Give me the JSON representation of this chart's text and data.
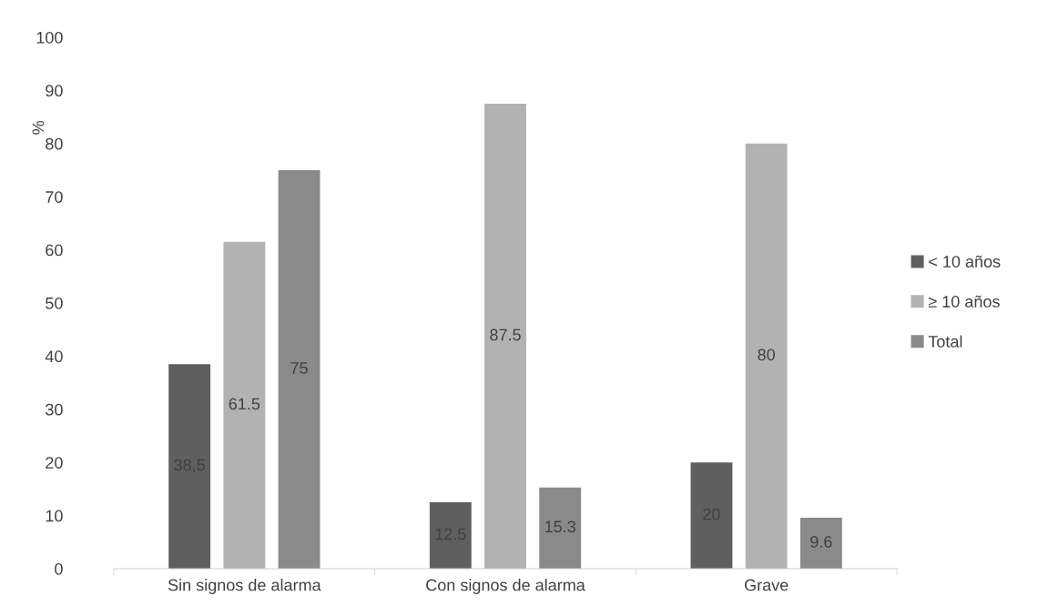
{
  "chart_data": {
    "type": "bar",
    "ylabel": "%",
    "categories": [
      "Sin signos de alarma",
      "Con signos de alarma",
      "Grave"
    ],
    "series": [
      {
        "name": "< 10 años",
        "color": "#5f5f5f",
        "values": [
          38.5,
          12.5,
          20
        ],
        "value_labels": [
          "38,5",
          "12.5",
          "20"
        ]
      },
      {
        "name": "≥ 10 años",
        "color": "#b2b2b2",
        "values": [
          61.5,
          87.5,
          80
        ],
        "value_labels": [
          "61.5",
          "87.5",
          "80"
        ]
      },
      {
        "name": "Total",
        "color": "#8a8a8a",
        "values": [
          75,
          15.3,
          9.6
        ],
        "value_labels": [
          "75",
          "15.3",
          "9.6"
        ]
      }
    ],
    "ylim": [
      0,
      100
    ],
    "yticks": [
      0,
      10,
      20,
      30,
      40,
      50,
      60,
      70,
      80,
      90,
      100
    ],
    "grid": false,
    "legend": "right"
  }
}
